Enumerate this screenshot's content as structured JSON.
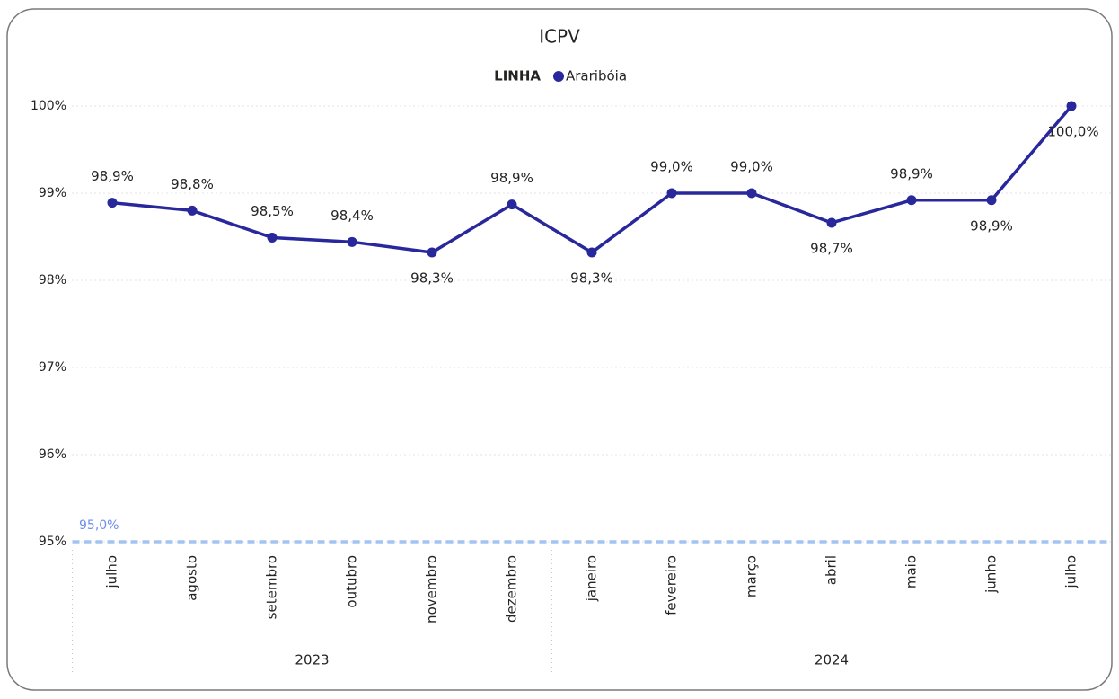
{
  "chart_data": {
    "type": "line",
    "title": "ICPV",
    "legend_title": "LINHA",
    "groups": [
      {
        "name": "2023",
        "categories": [
          "julho",
          "agosto",
          "setembro",
          "outubro",
          "novembro",
          "dezembro"
        ]
      },
      {
        "name": "2024",
        "categories": [
          "janeiro",
          "fevereiro",
          "março",
          "abril",
          "maio",
          "junho",
          "julho"
        ]
      }
    ],
    "series": [
      {
        "name": "Araribóia",
        "color": "#28289c",
        "values": [
          98.89,
          98.8,
          98.49,
          98.44,
          98.32,
          98.87,
          98.32,
          99.0,
          99.0,
          98.66,
          98.92,
          98.92,
          100.0
        ],
        "value_labels": [
          "98,9%",
          "98,8%",
          "98,5%",
          "98,4%",
          "98,3%",
          "98,9%",
          "98,3%",
          "99,0%",
          "99,0%",
          "98,7%",
          "98,9%",
          "98,9%",
          "100,0%"
        ]
      }
    ],
    "ylim": [
      95,
      100
    ],
    "yticks": [
      {
        "value": 95,
        "label": "95%"
      },
      {
        "value": 96,
        "label": "96%"
      },
      {
        "value": 97,
        "label": "97%"
      },
      {
        "value": 98,
        "label": "98%"
      },
      {
        "value": 99,
        "label": "99%"
      },
      {
        "value": 100,
        "label": "100%"
      }
    ],
    "grid": true,
    "reference_line": {
      "value": 95,
      "label": "95,0%",
      "color": "#a3c4f3",
      "label_color": "#6b8ef0"
    }
  }
}
